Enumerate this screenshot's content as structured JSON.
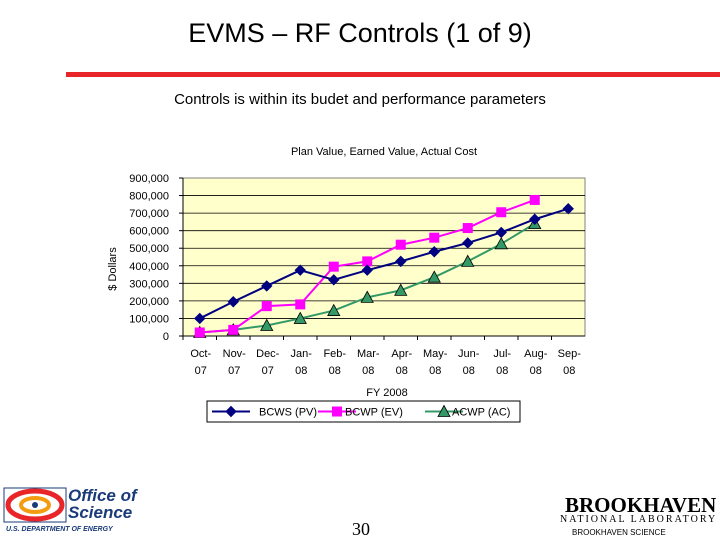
{
  "page": {
    "title": "EVMS – RF Controls (1 of 9)",
    "subtitle": "Controls is within its budet and performance parameters",
    "page_number": "30",
    "accent_color": "#e8262a"
  },
  "footer": {
    "doe_name_line1": "Office of",
    "doe_name_line2": "Science",
    "doe_dept": "U.S. DEPARTMENT OF ENERGY",
    "bnl_name": "BROOKHAVEN",
    "bnl_lab": "NATIONAL LABORATORY",
    "bnl_assoc": "BROOKHAVEN SCIENCE"
  },
  "chart_data": {
    "type": "line",
    "title": "Plan Value, Earned Value, Actual Cost",
    "xlabel": "FY 2008",
    "ylabel": "$ Dollars",
    "ylim": [
      0,
      900000
    ],
    "yticks": [
      0,
      100000,
      200000,
      300000,
      400000,
      500000,
      600000,
      700000,
      800000,
      900000
    ],
    "ytick_labels": [
      "0",
      "100,000",
      "200,000",
      "300,000",
      "400,000",
      "500,000",
      "600,000",
      "700,000",
      "800,000",
      "900,000"
    ],
    "categories": [
      [
        "Oct-",
        "07"
      ],
      [
        "Nov-",
        "07"
      ],
      [
        "Dec-",
        "07"
      ],
      [
        "Jan-",
        "08"
      ],
      [
        "Feb-",
        "08"
      ],
      [
        "Mar-",
        "08"
      ],
      [
        "Apr-",
        "08"
      ],
      [
        "May-",
        "08"
      ],
      [
        "Jun-",
        "08"
      ],
      [
        "Jul-",
        "08"
      ],
      [
        "Aug-",
        "08"
      ],
      [
        "Sep-",
        "08"
      ]
    ],
    "plot_background": "#ffffcc",
    "series": [
      {
        "name": "BCWS (PV)",
        "color": "#000080",
        "marker": "diamond",
        "values": [
          100000,
          195000,
          285000,
          375000,
          320000,
          375000,
          425000,
          480000,
          530000,
          590000,
          665000,
          725000
        ]
      },
      {
        "name": "BCWP (EV)",
        "color": "#ff00ff",
        "marker": "square",
        "values": [
          20000,
          35000,
          170000,
          180000,
          395000,
          425000,
          520000,
          560000,
          615000,
          705000,
          775000,
          null
        ]
      },
      {
        "name": "ACWP (AC)",
        "color": "#339966",
        "marker": "triangle",
        "values": [
          20000,
          35000,
          60000,
          100000,
          145000,
          220000,
          260000,
          335000,
          425000,
          525000,
          640000,
          null
        ]
      }
    ]
  }
}
